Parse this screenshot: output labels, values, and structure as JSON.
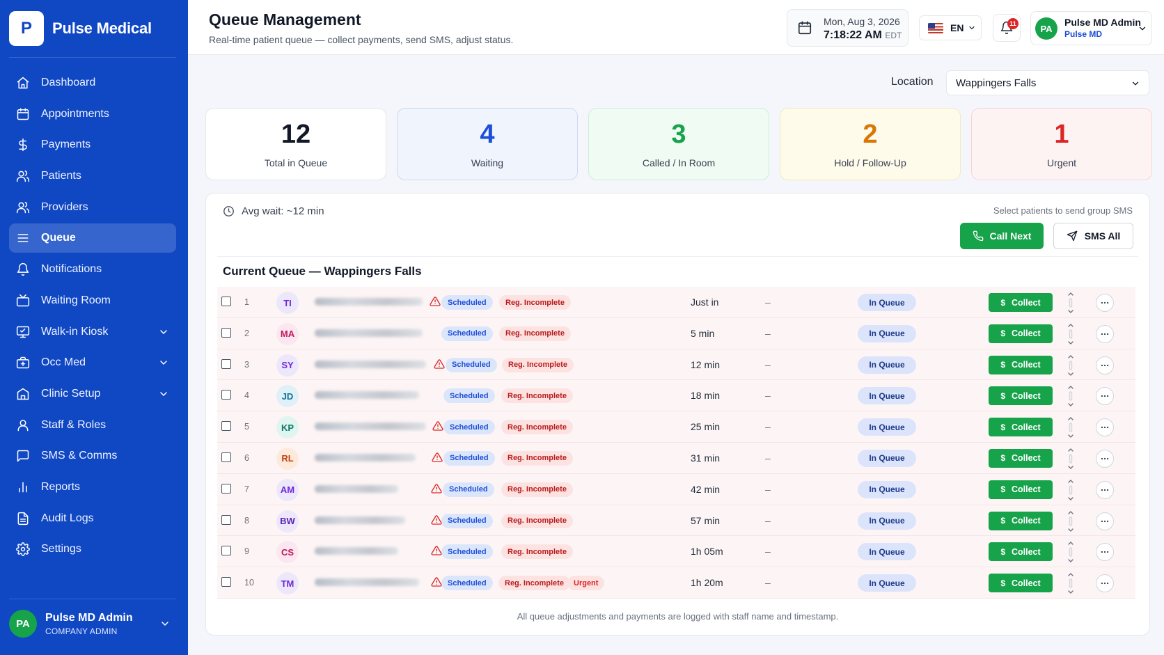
{
  "brand": {
    "logo_letter": "P",
    "name": "Pulse Medical"
  },
  "sidebar": {
    "items": [
      {
        "label": "Dashboard",
        "icon": "home-icon",
        "active": false,
        "expandable": false
      },
      {
        "label": "Appointments",
        "icon": "calendar-icon",
        "active": false,
        "expandable": false
      },
      {
        "label": "Payments",
        "icon": "dollar-icon",
        "active": false,
        "expandable": false
      },
      {
        "label": "Patients",
        "icon": "users-icon",
        "active": false,
        "expandable": false
      },
      {
        "label": "Providers",
        "icon": "users-icon",
        "active": false,
        "expandable": false
      },
      {
        "label": "Queue",
        "icon": "list-icon",
        "active": true,
        "expandable": false
      },
      {
        "label": "Notifications",
        "icon": "bell-icon",
        "active": false,
        "expandable": false
      },
      {
        "label": "Waiting Room",
        "icon": "tv-icon",
        "active": false,
        "expandable": false
      },
      {
        "label": "Walk-in Kiosk",
        "icon": "monitor-icon",
        "active": false,
        "expandable": true
      },
      {
        "label": "Occ Med",
        "icon": "briefcase-medical-icon",
        "active": false,
        "expandable": true
      },
      {
        "label": "Clinic Setup",
        "icon": "building-icon",
        "active": false,
        "expandable": true
      },
      {
        "label": "Staff & Roles",
        "icon": "user-icon",
        "active": false,
        "expandable": false
      },
      {
        "label": "SMS & Comms",
        "icon": "message-icon",
        "active": false,
        "expandable": false
      },
      {
        "label": "Reports",
        "icon": "bar-chart-icon",
        "active": false,
        "expandable": false
      },
      {
        "label": "Audit Logs",
        "icon": "file-text-icon",
        "active": false,
        "expandable": false
      },
      {
        "label": "Settings",
        "icon": "gear-icon",
        "active": false,
        "expandable": false
      }
    ],
    "user": {
      "initials": "PA",
      "name": "Pulse MD Admin",
      "role": "COMPANY ADMIN"
    }
  },
  "header": {
    "title": "Queue Management",
    "subtitle": "Real-time patient queue — collect payments, send SMS, adjust status.",
    "date": "Mon, Aug 3, 2026",
    "time": "7:18:22 AM",
    "timezone": "EDT",
    "language": "EN",
    "notification_count": "11",
    "user": {
      "initials": "PA",
      "name": "Pulse MD Admin",
      "org": "Pulse MD"
    }
  },
  "location": {
    "label": "Location",
    "value": "Wappingers Falls"
  },
  "stats": [
    {
      "value": "12",
      "label": "Total in Queue",
      "color": "#111827",
      "bg": "#ffffff",
      "border": "#e5e7eb"
    },
    {
      "value": "4",
      "label": "Waiting",
      "color": "#1d4ed8",
      "bg": "#eff4fd",
      "border": "#cfdaf2"
    },
    {
      "value": "3",
      "label": "Called / In Room",
      "color": "#16a34a",
      "bg": "#effbf3",
      "border": "#cdeed7"
    },
    {
      "value": "2",
      "label": "Hold / Follow-Up",
      "color": "#d97706",
      "bg": "#fffbeb",
      "border": "#f5e7c0"
    },
    {
      "value": "1",
      "label": "Urgent",
      "color": "#dc2626",
      "bg": "#fef3f3",
      "border": "#f6d5d5"
    }
  ],
  "queue": {
    "avg_wait": "Avg wait: ~12 min",
    "sms_hint": "Select patients to send group SMS",
    "call_next_label": "Call Next",
    "sms_all_label": "SMS All",
    "title": "Current Queue — Wappingers Falls",
    "collect_label": "Collect",
    "collect_symbol": "$",
    "footnote": "All queue adjustments and payments are logged with staff name and timestamp.",
    "rows": [
      {
        "num": "1",
        "initials": "TI",
        "avatar_bg": "#ede7fb",
        "avatar_color": "#6d28d9",
        "warning": true,
        "type": "Scheduled",
        "reg": "Reg. Incomplete",
        "urgent": "",
        "wait": "Just in",
        "provider": "–",
        "status": "In Queue"
      },
      {
        "num": "2",
        "initials": "MA",
        "avatar_bg": "#fce7f0",
        "avatar_color": "#be185d",
        "warning": false,
        "type": "Scheduled",
        "reg": "Reg. Incomplete",
        "urgent": "",
        "wait": "5 min",
        "provider": "–",
        "status": "In Queue"
      },
      {
        "num": "3",
        "initials": "SY",
        "avatar_bg": "#ede7fb",
        "avatar_color": "#6d28d9",
        "warning": true,
        "type": "Scheduled",
        "reg": "Reg. Incomplete",
        "urgent": "",
        "wait": "12 min",
        "provider": "–",
        "status": "In Queue"
      },
      {
        "num": "4",
        "initials": "JD",
        "avatar_bg": "#e0f0f8",
        "avatar_color": "#0e7490",
        "warning": false,
        "type": "Scheduled",
        "reg": "Reg. Incomplete",
        "urgent": "",
        "wait": "18 min",
        "provider": "–",
        "status": "In Queue"
      },
      {
        "num": "5",
        "initials": "KP",
        "avatar_bg": "#dff5ef",
        "avatar_color": "#0f766e",
        "warning": true,
        "type": "Scheduled",
        "reg": "Reg. Incomplete",
        "urgent": "",
        "wait": "25 min",
        "provider": "–",
        "status": "In Queue"
      },
      {
        "num": "6",
        "initials": "RL",
        "avatar_bg": "#fdeadc",
        "avatar_color": "#c2410c",
        "warning": true,
        "type": "Scheduled",
        "reg": "Reg. Incomplete",
        "urgent": "",
        "wait": "31 min",
        "provider": "–",
        "status": "In Queue"
      },
      {
        "num": "7",
        "initials": "AM",
        "avatar_bg": "#ede7fb",
        "avatar_color": "#6d28d9",
        "warning": true,
        "type": "Scheduled",
        "reg": "Reg. Incomplete",
        "urgent": "",
        "wait": "42 min",
        "provider": "–",
        "status": "In Queue"
      },
      {
        "num": "8",
        "initials": "BW",
        "avatar_bg": "#ede7fb",
        "avatar_color": "#5b21b6",
        "warning": true,
        "type": "Scheduled",
        "reg": "Reg. Incomplete",
        "urgent": "",
        "wait": "57 min",
        "provider": "–",
        "status": "In Queue"
      },
      {
        "num": "9",
        "initials": "CS",
        "avatar_bg": "#fce7f0",
        "avatar_color": "#be185d",
        "warning": true,
        "type": "Scheduled",
        "reg": "Reg. Incomplete",
        "urgent": "",
        "wait": "1h 05m",
        "provider": "–",
        "status": "In Queue"
      },
      {
        "num": "10",
        "initials": "TM",
        "avatar_bg": "#ede7fb",
        "avatar_color": "#6d28d9",
        "warning": true,
        "type": "Scheduled",
        "reg": "Reg. Incomplete",
        "urgent": "Urgent",
        "wait": "1h 20m",
        "provider": "–",
        "status": "In Queue"
      }
    ]
  }
}
